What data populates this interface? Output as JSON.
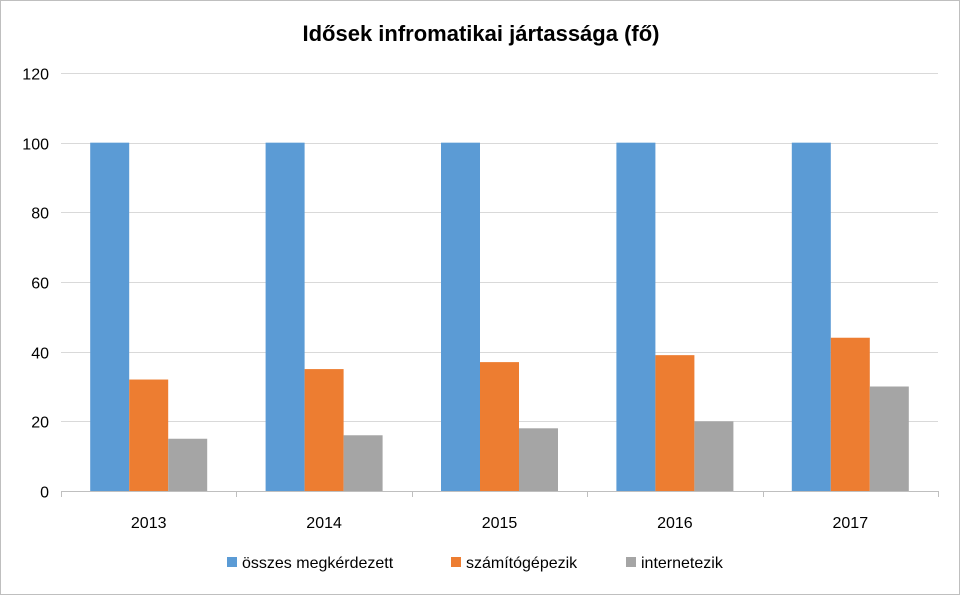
{
  "chart_data": {
    "type": "bar",
    "title": "Idősek infromatikai jártassága (fő)",
    "xlabel": "",
    "ylabel": "",
    "categories": [
      "2013",
      "2014",
      "2015",
      "2016",
      "2017"
    ],
    "series": [
      {
        "name": "összes megkérdezett",
        "values": [
          100,
          100,
          100,
          100,
          100
        ],
        "color": "#5b9bd5"
      },
      {
        "name": "számítógépezik",
        "values": [
          32,
          35,
          37,
          39,
          44
        ],
        "color": "#ed7d31"
      },
      {
        "name": "internetezik",
        "values": [
          15,
          16,
          18,
          20,
          30
        ],
        "color": "#a5a5a5"
      }
    ],
    "ylim": [
      0,
      120
    ],
    "yticks": [
      "0",
      "20",
      "40",
      "60",
      "80",
      "100",
      "120"
    ],
    "grid": true,
    "legend": "bottom",
    "gridColor": "#d9d9d9",
    "axisColor": "#bfbfbf"
  }
}
